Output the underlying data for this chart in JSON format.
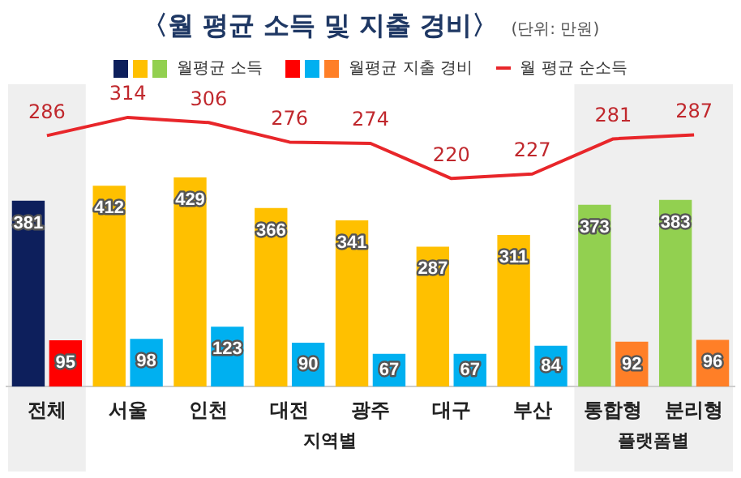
{
  "chart_data": {
    "type": "bar",
    "title": "〈월 평균 소득 및 지출 경비〉",
    "subtitle": "(단위: 만원)",
    "categories": [
      "전체",
      "서울",
      "인천",
      "대전",
      "광주",
      "대구",
      "부산",
      "통합형",
      "분리형"
    ],
    "series": [
      {
        "name": "월평균 소득",
        "colors": [
          "#0d1f5c",
          "#ffc000",
          "#ffc000",
          "#ffc000",
          "#ffc000",
          "#ffc000",
          "#ffc000",
          "#92d050",
          "#92d050"
        ],
        "values": [
          381,
          412,
          429,
          366,
          341,
          287,
          311,
          373,
          383
        ]
      },
      {
        "name": "월평균 지출 경비",
        "colors": [
          "#ff0000",
          "#00b0f0",
          "#00b0f0",
          "#00b0f0",
          "#00b0f0",
          "#00b0f0",
          "#00b0f0",
          "#ff7f27",
          "#ff7f27"
        ],
        "values": [
          95,
          98,
          123,
          90,
          67,
          67,
          84,
          92,
          96
        ]
      },
      {
        "name": "월 평균 순소득",
        "type": "line",
        "axis": "y2",
        "color": "#e8262a",
        "values": [
          286,
          314,
          306,
          276,
          274,
          220,
          227,
          281,
          287
        ]
      }
    ],
    "bands": [
      {
        "axis": "x",
        "from": "전체",
        "to": "전체",
        "color": "#efefef"
      },
      {
        "axis": "x",
        "from": "통합형",
        "to": "분리형",
        "color": "#efefef"
      }
    ],
    "annotations": [
      "지역별",
      "플랫폼별"
    ],
    "data_labels": true,
    "legend": "top",
    "marker": "none",
    "grid": false
  }
}
